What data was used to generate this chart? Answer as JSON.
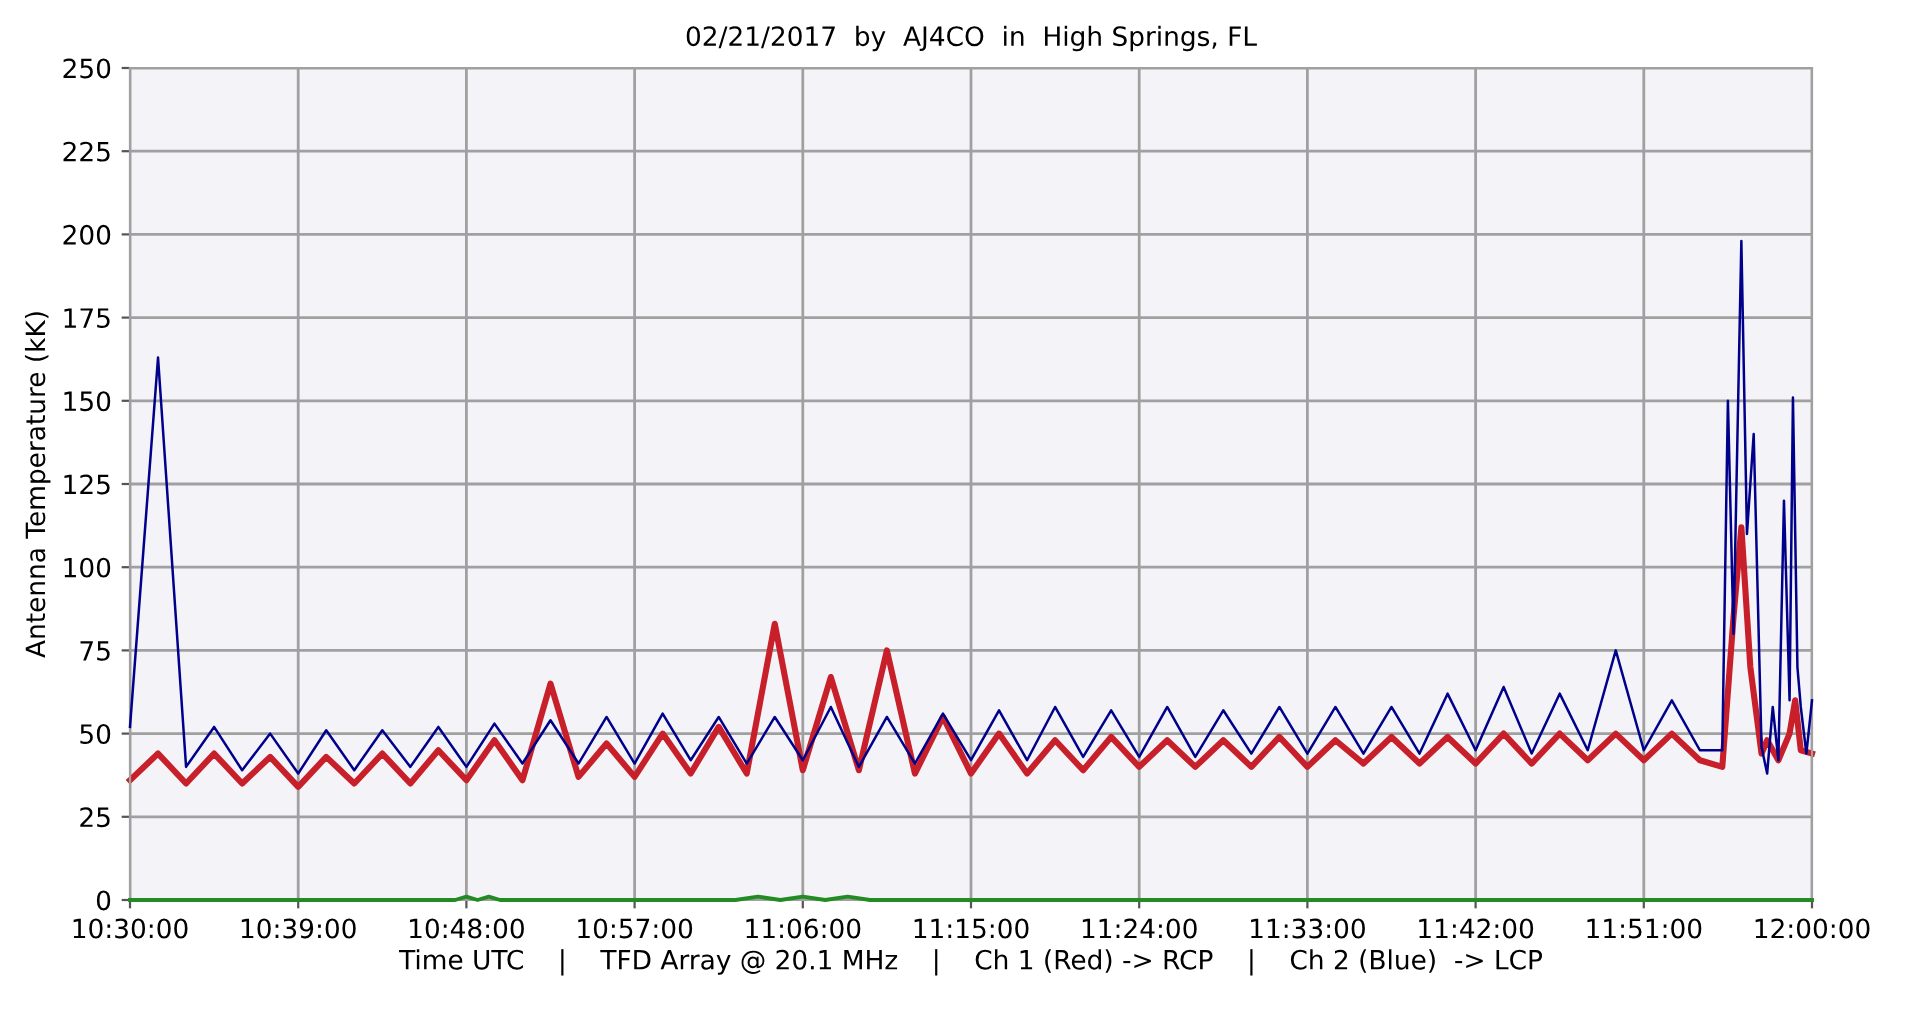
{
  "chart_data": {
    "type": "line",
    "title": "02/21/2017  by  AJ4CO  in  High Springs, FL",
    "xlabel": "Time UTC    |    TFD Array @ 20.1 MHz    |    Ch 1 (Red) -> RCP    |    Ch 2 (Blue)  -> LCP",
    "ylabel": "Antenna Temperature (kK)",
    "xlim": [
      10.5,
      12.0
    ],
    "xticks": [
      {
        "value": 10.5,
        "label": "10:30:00"
      },
      {
        "value": 10.65,
        "label": "10:39:00"
      },
      {
        "value": 10.8,
        "label": "10:48:00"
      },
      {
        "value": 10.95,
        "label": "10:57:00"
      },
      {
        "value": 11.1,
        "label": "11:06:00"
      },
      {
        "value": 11.25,
        "label": "11:15:00"
      },
      {
        "value": 11.4,
        "label": "11:24:00"
      },
      {
        "value": 11.55,
        "label": "11:33:00"
      },
      {
        "value": 11.7,
        "label": "11:42:00"
      },
      {
        "value": 11.85,
        "label": "11:51:00"
      },
      {
        "value": 12.0,
        "label": "12:00:00"
      }
    ],
    "ylim": [
      0,
      250
    ],
    "yticks": [
      0,
      25,
      50,
      75,
      100,
      125,
      150,
      175,
      200,
      225,
      250
    ],
    "grid": true,
    "legend": false,
    "marker": "none",
    "line_style": "solid",
    "series": [
      {
        "color": "#c8202a",
        "x": [
          10.5,
          10.525,
          10.55,
          10.575,
          10.6,
          10.625,
          10.65,
          10.675,
          10.7,
          10.725,
          10.75,
          10.775,
          10.8,
          10.825,
          10.85,
          10.875,
          10.9,
          10.925,
          10.95,
          10.975,
          11.0,
          11.025,
          11.05,
          11.075,
          11.1,
          11.125,
          11.15,
          11.175,
          11.2,
          11.225,
          11.25,
          11.275,
          11.3,
          11.325,
          11.35,
          11.375,
          11.4,
          11.425,
          11.45,
          11.475,
          11.5,
          11.525,
          11.55,
          11.575,
          11.6,
          11.625,
          11.65,
          11.675,
          11.7,
          11.725,
          11.75,
          11.775,
          11.8,
          11.825,
          11.85,
          11.875,
          11.9,
          11.92,
          11.93,
          11.937,
          11.945,
          11.955,
          11.96,
          11.97,
          11.98,
          11.985,
          11.99,
          12.0
        ],
        "values": [
          36,
          44,
          35,
          44,
          35,
          43,
          34,
          43,
          35,
          44,
          35,
          45,
          36,
          48,
          36,
          65,
          37,
          47,
          37,
          50,
          38,
          52,
          38,
          83,
          39,
          67,
          39,
          75,
          38,
          55,
          38,
          50,
          38,
          48,
          39,
          49,
          40,
          48,
          40,
          48,
          40,
          49,
          40,
          48,
          41,
          49,
          41,
          49,
          41,
          50,
          41,
          50,
          42,
          50,
          42,
          50,
          42,
          40,
          85,
          112,
          70,
          44,
          48,
          42,
          50,
          60,
          45,
          44
        ]
      },
      {
        "color": "#00008b",
        "x": [
          10.5,
          10.525,
          10.55,
          10.575,
          10.6,
          10.625,
          10.65,
          10.675,
          10.7,
          10.725,
          10.75,
          10.775,
          10.8,
          10.825,
          10.85,
          10.875,
          10.9,
          10.925,
          10.95,
          10.975,
          11.0,
          11.025,
          11.05,
          11.075,
          11.1,
          11.125,
          11.15,
          11.175,
          11.2,
          11.225,
          11.25,
          11.275,
          11.3,
          11.325,
          11.35,
          11.375,
          11.4,
          11.425,
          11.45,
          11.475,
          11.5,
          11.525,
          11.55,
          11.575,
          11.6,
          11.625,
          11.65,
          11.675,
          11.7,
          11.725,
          11.75,
          11.775,
          11.8,
          11.825,
          11.85,
          11.875,
          11.9,
          11.92,
          11.925,
          11.93,
          11.937,
          11.942,
          11.948,
          11.955,
          11.96,
          11.965,
          11.97,
          11.975,
          11.98,
          11.983,
          11.987,
          11.99,
          11.995,
          12.0
        ],
        "values": [
          52,
          163,
          40,
          52,
          39,
          50,
          38,
          51,
          39,
          51,
          40,
          52,
          40,
          53,
          41,
          54,
          41,
          55,
          41,
          56,
          42,
          55,
          41,
          55,
          42,
          58,
          40,
          55,
          41,
          56,
          42,
          57,
          42,
          58,
          43,
          57,
          43,
          58,
          43,
          57,
          44,
          58,
          44,
          58,
          44,
          58,
          44,
          62,
          45,
          64,
          44,
          62,
          45,
          75,
          45,
          60,
          45,
          45,
          150,
          80,
          198,
          110,
          140,
          46,
          38,
          58,
          42,
          120,
          60,
          151,
          70,
          58,
          44,
          60
        ]
      },
      {
        "color": "#228b22",
        "x": [
          10.5,
          10.79,
          10.8,
          10.81,
          10.82,
          10.83,
          10.84,
          11.04,
          11.06,
          11.08,
          11.1,
          11.12,
          11.14,
          11.16,
          11.18,
          12.0
        ],
        "values": [
          0,
          0,
          1,
          0,
          1,
          0,
          0,
          0,
          1,
          0,
          1,
          0,
          1,
          0,
          0,
          0
        ]
      }
    ]
  }
}
